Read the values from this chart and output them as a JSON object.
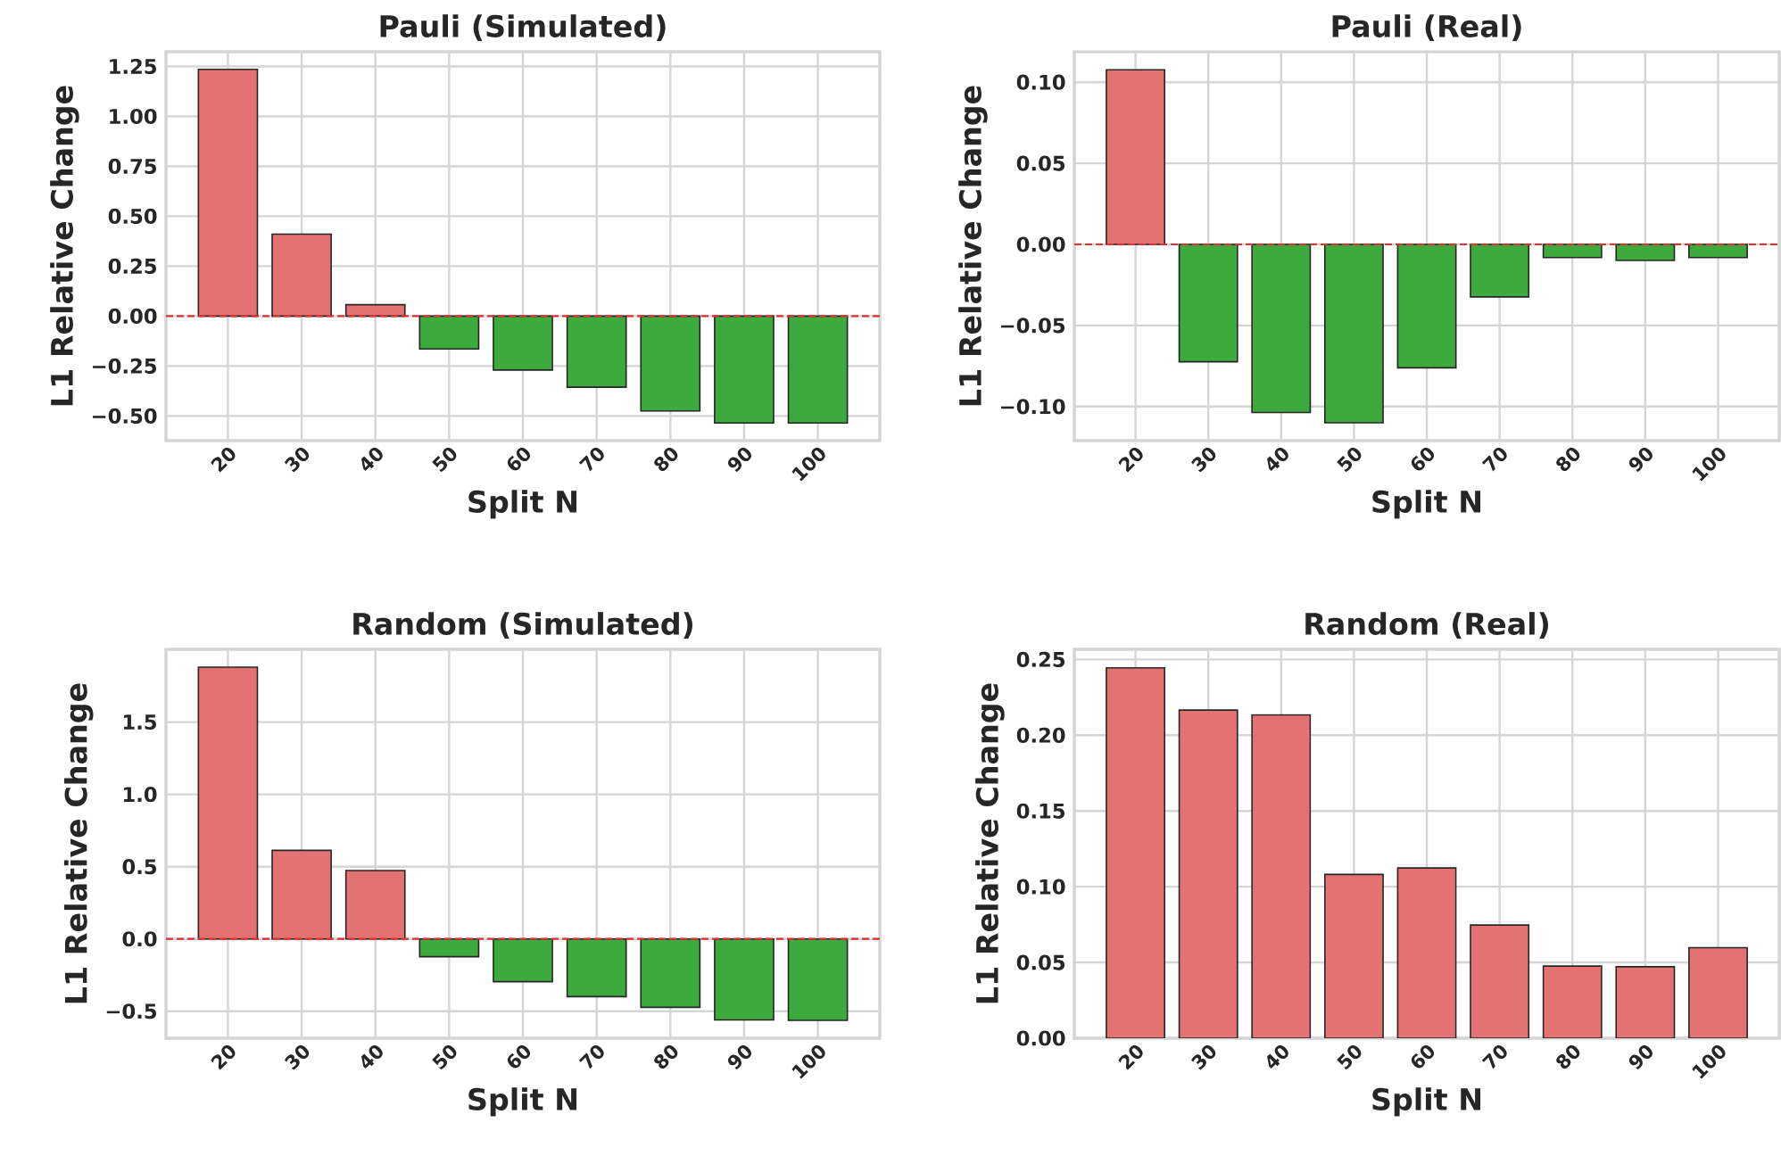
{
  "chart_data": [
    {
      "type": "bar",
      "title": "Pauli (Simulated)",
      "xlabel": "Split N",
      "ylabel": "L1 Relative Change",
      "categories": [
        "20",
        "30",
        "40",
        "50",
        "60",
        "70",
        "80",
        "90",
        "100"
      ],
      "values": [
        1.235,
        0.41,
        0.057,
        -0.165,
        -0.27,
        -0.356,
        -0.475,
        -0.535,
        -0.535
      ],
      "colors": [
        "#e47272",
        "#e47272",
        "#e47272",
        "#3caa3c",
        "#3caa3c",
        "#3caa3c",
        "#3caa3c",
        "#3caa3c",
        "#3caa3c"
      ],
      "ylim": [
        -0.6235,
        1.3235
      ],
      "yticks": [
        {
          "value": -0.5,
          "label": "−0.50"
        },
        {
          "value": -0.25,
          "label": "−0.25"
        },
        {
          "value": 0,
          "label": "0.00"
        },
        {
          "value": 0.25,
          "label": "0.25"
        },
        {
          "value": 0.5,
          "label": "0.50"
        },
        {
          "value": 0.75,
          "label": "0.75"
        },
        {
          "value": 1,
          "label": "1.00"
        },
        {
          "value": 1.25,
          "label": "1.25"
        }
      ],
      "grid": true,
      "ref_lines": [
        {
          "axis": "y",
          "value": 0,
          "color": "#e03030",
          "line_style": "dashed"
        }
      ]
    },
    {
      "type": "bar",
      "title": "Pauli (Real)",
      "xlabel": "Split N",
      "ylabel": "L1 Relative Change",
      "categories": [
        "20",
        "30",
        "40",
        "50",
        "60",
        "70",
        "80",
        "90",
        "100"
      ],
      "values": [
        0.1077,
        -0.0724,
        -0.1037,
        -0.11,
        -0.0761,
        -0.0324,
        -0.0081,
        -0.0099,
        -0.0081
      ],
      "colors": [
        "#e47272",
        "#3caa3c",
        "#3caa3c",
        "#3caa3c",
        "#3caa3c",
        "#3caa3c",
        "#3caa3c",
        "#3caa3c",
        "#3caa3c"
      ],
      "ylim": [
        -0.121,
        0.1188
      ],
      "yticks": [
        {
          "value": -0.1,
          "label": "−0.10"
        },
        {
          "value": -0.05,
          "label": "−0.05"
        },
        {
          "value": 0,
          "label": "0.00"
        },
        {
          "value": 0.05,
          "label": "0.05"
        },
        {
          "value": 0.1,
          "label": "0.10"
        }
      ],
      "grid": true,
      "ref_lines": [
        {
          "axis": "y",
          "value": 0,
          "color": "#e03030",
          "line_style": "dashed"
        }
      ]
    },
    {
      "type": "bar",
      "title": "Random (Simulated)",
      "xlabel": "Split N",
      "ylabel": "L1 Relative Change",
      "categories": [
        "20",
        "30",
        "40",
        "50",
        "60",
        "70",
        "80",
        "90",
        "100"
      ],
      "values": [
        1.881,
        0.613,
        0.473,
        -0.123,
        -0.296,
        -0.399,
        -0.473,
        -0.56,
        -0.564
      ],
      "colors": [
        "#e47272",
        "#e47272",
        "#e47272",
        "#3caa3c",
        "#3caa3c",
        "#3caa3c",
        "#3caa3c",
        "#3caa3c",
        "#3caa3c"
      ],
      "ylim": [
        -0.687,
        2.004
      ],
      "yticks": [
        {
          "value": -0.5,
          "label": "−0.5"
        },
        {
          "value": 0,
          "label": "0.0"
        },
        {
          "value": 0.5,
          "label": "0.5"
        },
        {
          "value": 1,
          "label": "1.0"
        },
        {
          "value": 1.5,
          "label": "1.5"
        }
      ],
      "grid": true,
      "ref_lines": [
        {
          "axis": "y",
          "value": 0,
          "color": "#e03030",
          "line_style": "dashed"
        }
      ]
    },
    {
      "type": "bar",
      "title": "Random (Real)",
      "xlabel": "Split N",
      "ylabel": "L1 Relative Change",
      "categories": [
        "20",
        "30",
        "40",
        "50",
        "60",
        "70",
        "80",
        "90",
        "100"
      ],
      "values": [
        0.2445,
        0.2166,
        0.2134,
        0.1081,
        0.1124,
        0.0747,
        0.0476,
        0.0472,
        0.0598
      ],
      "colors": [
        "#e47272",
        "#e47272",
        "#e47272",
        "#e47272",
        "#e47272",
        "#e47272",
        "#e47272",
        "#e47272",
        "#e47272"
      ],
      "ylim": [
        0,
        0.2567
      ],
      "yticks": [
        {
          "value": 0,
          "label": "0.00"
        },
        {
          "value": 0.05,
          "label": "0.05"
        },
        {
          "value": 0.1,
          "label": "0.10"
        },
        {
          "value": 0.15,
          "label": "0.15"
        },
        {
          "value": 0.2,
          "label": "0.20"
        },
        {
          "value": 0.25,
          "label": "0.25"
        }
      ],
      "grid": true
    }
  ]
}
